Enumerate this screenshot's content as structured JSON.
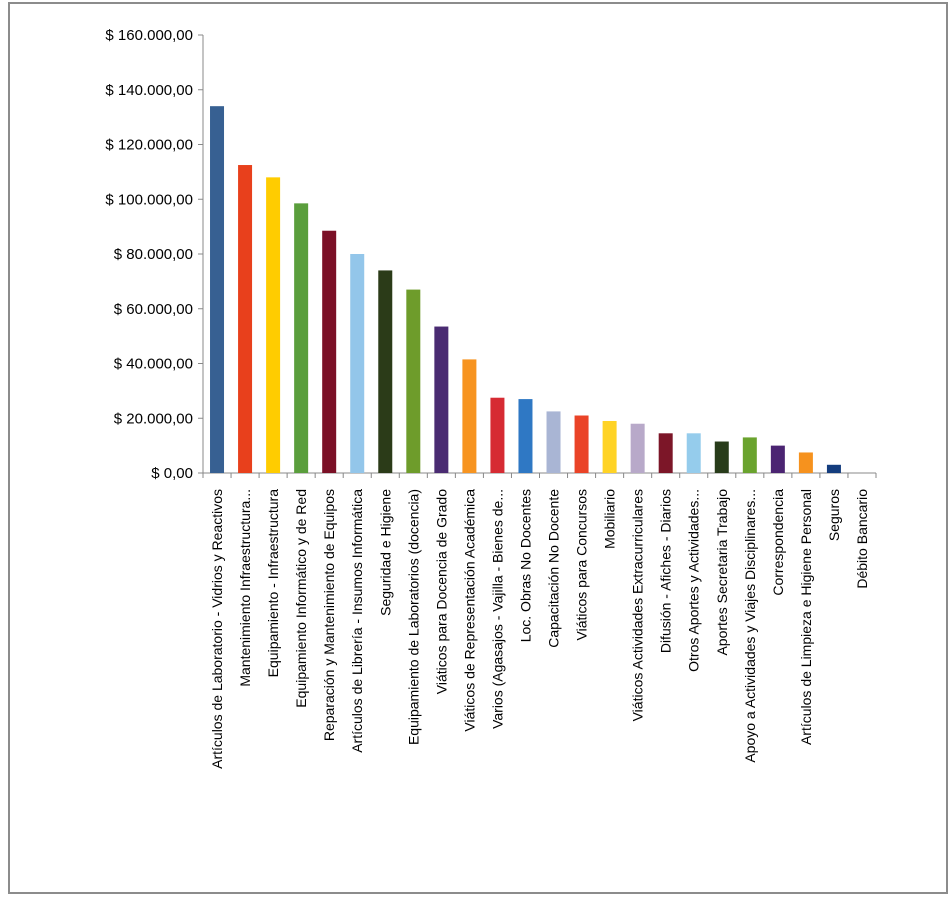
{
  "chart_data": {
    "type": "bar",
    "title": "",
    "xlabel": "",
    "ylabel": "",
    "ylim": [
      0,
      160000
    ],
    "y_ticks": [
      0,
      20000,
      40000,
      60000,
      80000,
      100000,
      120000,
      140000,
      160000
    ],
    "y_tick_labels": [
      "$ 0,00",
      "$ 20.000,00",
      "$ 40.000,00",
      "$ 60.000,00",
      "$ 80.000,00",
      "$ 100.000,00",
      "$ 120.000,00",
      "$ 140.000,00",
      "$ 160.000,00"
    ],
    "grid": false,
    "legend": "none",
    "categories": [
      "Artículos de Laboratorio - Vidrios y Reactivos",
      "Mantenimiento Infraestructura...",
      "Equipamiento - Infraestructura",
      "Equipamiento Informático y de Red",
      "Reparación y Mantenimiento de Equipos",
      "Artículos de Librería - Insumos Informática",
      "Seguridad e Higiene",
      "Equipamiento de Laboratorios (docencia)",
      "Viáticos para Docencia de Grado",
      "Viáticos de Representación Académica",
      "Varios (Agasajos - Vajilla - Bienes de...",
      "Loc. Obras No Docentes",
      "Capacitación No Docente",
      "Viáticos para Concursos",
      "Mobiliario",
      "Viáticos Actividades Extracurriculares",
      "Difusión - Afiches - Diarios",
      "Otros Aportes y Actividades...",
      "Aportes Secretaria Trabajo",
      "Apoyo a Actividades y Viajes Disciplinares...",
      "Correspondencia",
      "Artículos de Limpieza e Higiene Personal",
      "Seguros",
      "Débito Bancario"
    ],
    "values": [
      134000,
      112500,
      108000,
      98500,
      88500,
      80000,
      74000,
      67000,
      53500,
      41500,
      27500,
      27000,
      22500,
      21000,
      19000,
      18000,
      14500,
      14500,
      11500,
      13000,
      10000,
      7500,
      3000,
      0
    ],
    "colors": [
      "#376092",
      "#e8401c",
      "#ffcc00",
      "#5a9e3c",
      "#7b1026",
      "#93c6ea",
      "#2b3b18",
      "#6e9c2b",
      "#4a2b72",
      "#f79420",
      "#d62b33",
      "#2f78c4",
      "#a9b5d4",
      "#ea4327",
      "#ffd325",
      "#b8a9c9",
      "#7c1628",
      "#95ccec",
      "#283c1a",
      "#6aa32e",
      "#4b2472",
      "#f6921e",
      "#143d7e",
      "#3a8c3a"
    ]
  }
}
